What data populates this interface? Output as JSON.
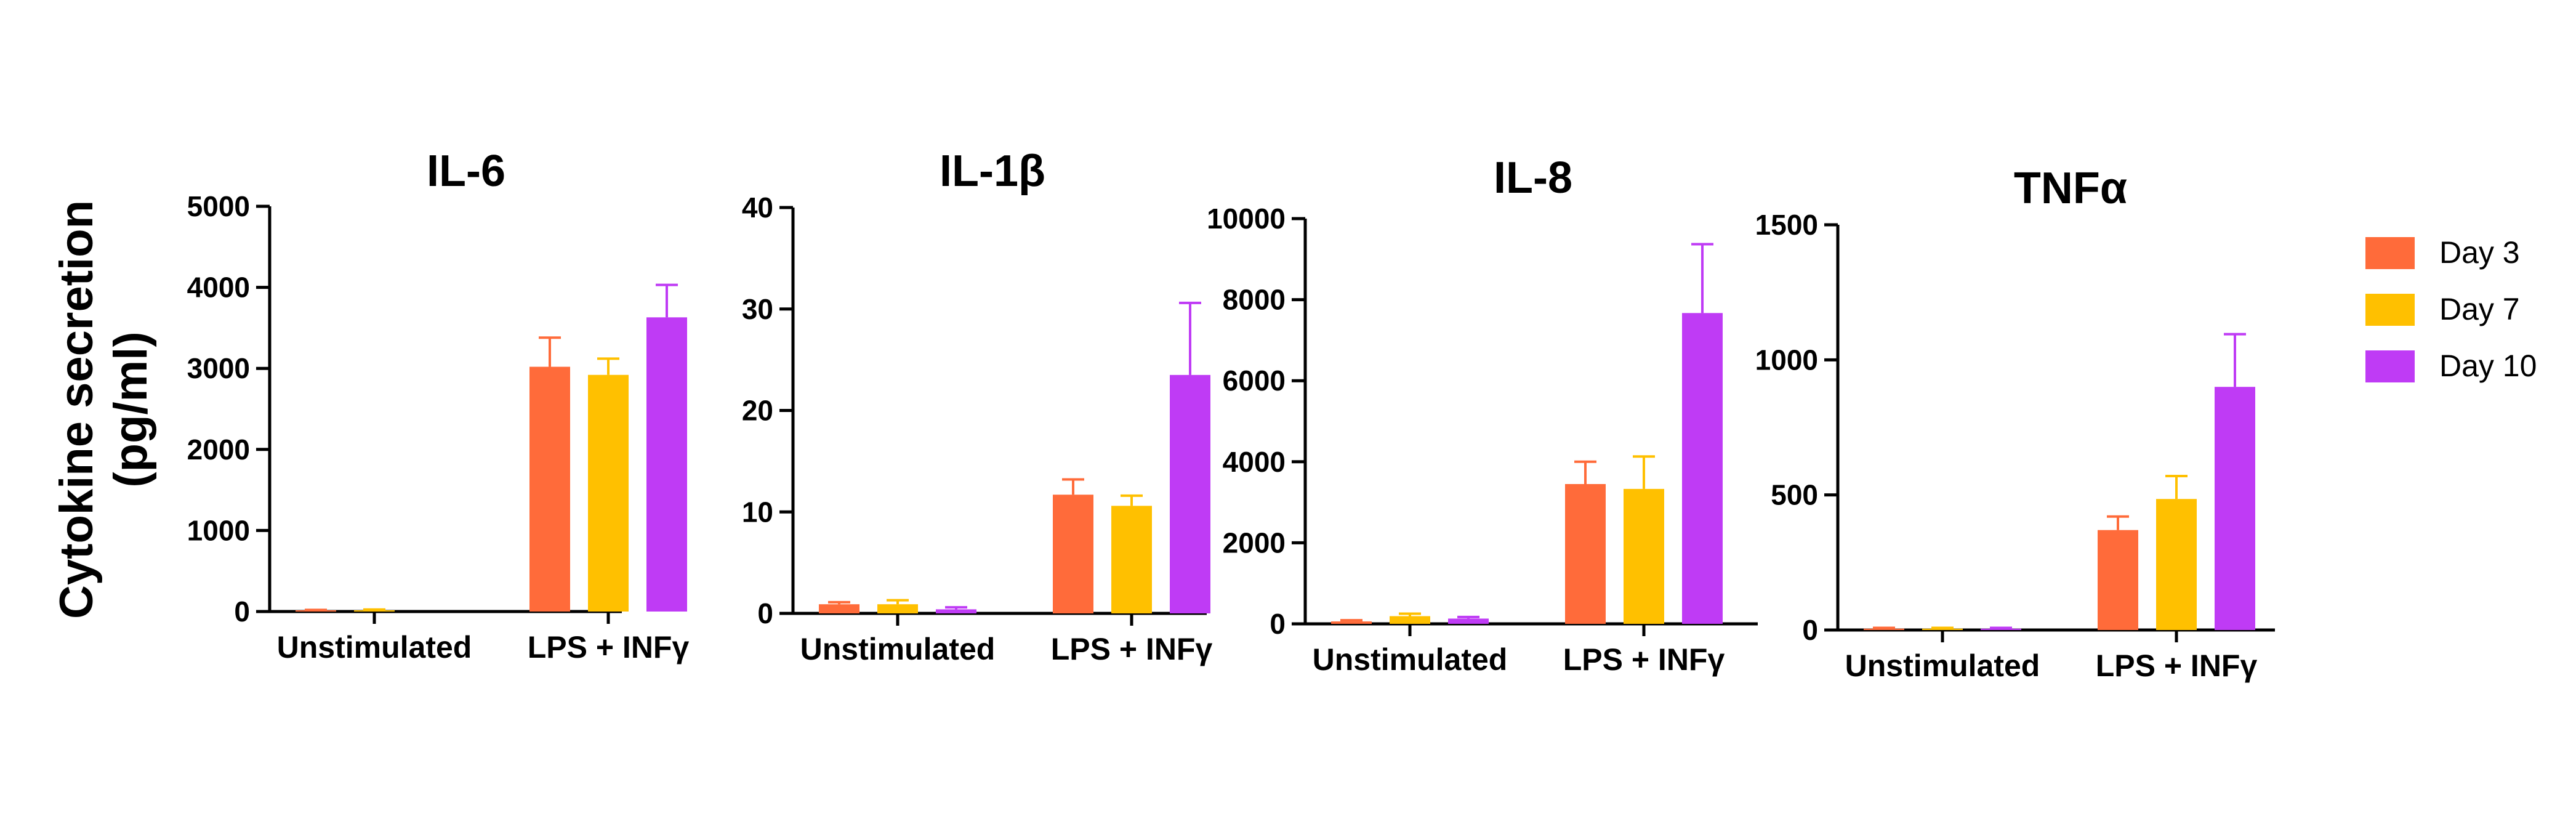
{
  "figure": {
    "y_label_line1": "Cytokine secretion",
    "y_label_line2": "(pg/ml)"
  },
  "legend": [
    {
      "label": "Day 3",
      "color": "#FF6B3A"
    },
    {
      "label": "Day 7",
      "color": "#FFC000"
    },
    {
      "label": "Day 10",
      "color": "#BF3BF5"
    }
  ],
  "chart_data": [
    {
      "type": "bar",
      "title": "IL-6",
      "categories": [
        "Unstimulated",
        "LPS + INFγ"
      ],
      "yticks": [
        0,
        1000,
        2000,
        3000,
        4000,
        5000
      ],
      "ylim": [
        0,
        5000
      ],
      "series": [
        {
          "name": "Day 3",
          "values": [
            15,
            3020
          ],
          "errors": [
            5,
            360
          ]
        },
        {
          "name": "Day 7",
          "values": [
            15,
            2920
          ],
          "errors": [
            10,
            200
          ]
        },
        {
          "name": "Day 10",
          "values": [
            0,
            3630
          ],
          "errors": [
            0,
            400
          ]
        }
      ]
    },
    {
      "type": "bar",
      "title": "IL-1β",
      "categories": [
        "Unstimulated",
        "LPS + INFγ"
      ],
      "yticks": [
        0,
        10,
        20,
        30,
        40
      ],
      "ylim": [
        0,
        40
      ],
      "series": [
        {
          "name": "Day 3",
          "values": [
            0.9,
            11.7
          ],
          "errors": [
            0.2,
            1.5
          ]
        },
        {
          "name": "Day 7",
          "values": [
            0.9,
            10.6
          ],
          "errors": [
            0.4,
            1.0
          ]
        },
        {
          "name": "Day 10",
          "values": [
            0.4,
            23.5
          ],
          "errors": [
            0.2,
            7.1
          ]
        }
      ]
    },
    {
      "type": "bar",
      "title": "IL-8",
      "categories": [
        "Unstimulated",
        "LPS + INFγ"
      ],
      "yticks": [
        0,
        2000,
        4000,
        6000,
        8000,
        10000
      ],
      "ylim": [
        0,
        10000
      ],
      "series": [
        {
          "name": "Day 3",
          "values": [
            60,
            3450
          ],
          "errors": [
            30,
            550
          ]
        },
        {
          "name": "Day 7",
          "values": [
            190,
            3330
          ],
          "errors": [
            60,
            800
          ]
        },
        {
          "name": "Day 10",
          "values": [
            130,
            7670
          ],
          "errors": [
            40,
            1700
          ]
        }
      ]
    },
    {
      "type": "bar",
      "title": "TNFα",
      "categories": [
        "Unstimulated",
        "LPS + INFγ"
      ],
      "yticks": [
        0,
        500,
        1000,
        1500
      ],
      "ylim": [
        0,
        1500
      ],
      "series": [
        {
          "name": "Day 3",
          "values": [
            5,
            370
          ],
          "errors": [
            3,
            50
          ]
        },
        {
          "name": "Day 7",
          "values": [
            5,
            485
          ],
          "errors": [
            3,
            85
          ]
        },
        {
          "name": "Day 10",
          "values": [
            5,
            900
          ],
          "errors": [
            3,
            195
          ]
        }
      ]
    }
  ]
}
